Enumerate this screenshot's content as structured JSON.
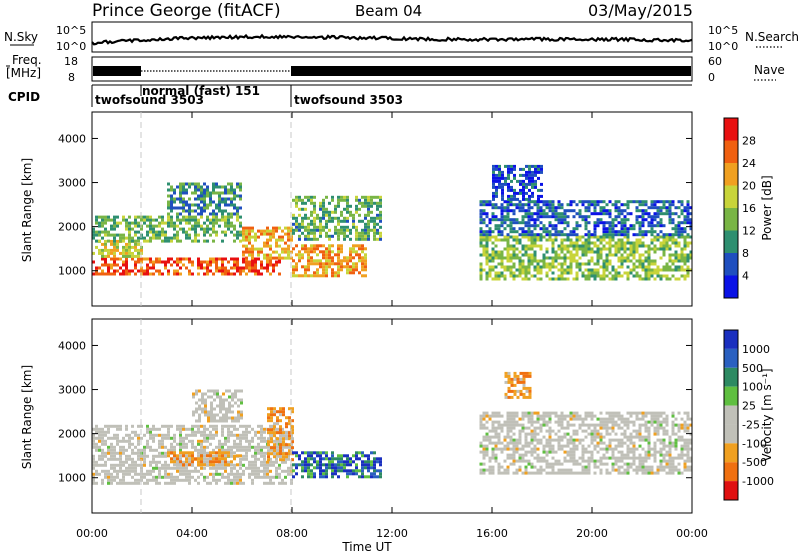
{
  "header": {
    "station": "Prince George (fitACF)",
    "beam": "Beam 04",
    "date": "03/May/2015"
  },
  "strips": {
    "nsky_label": "N.Sky",
    "nsky_ticks": [
      "10^5",
      "10^0"
    ],
    "nsearch_label": "N.Search",
    "freq_label_1": "Freq.",
    "freq_label_2": "[MHz]",
    "freq_ticks": [
      "18",
      "8"
    ],
    "nave_label": "Nave",
    "nave_ticks": [
      "60",
      "0"
    ],
    "cpid_label": "CPID",
    "cpid_segments": [
      {
        "label": "twofsound 3503",
        "start_h": 0,
        "end_h": 2
      },
      {
        "label": "normal (fast) 151",
        "start_h": 2,
        "end_h": 8
      },
      {
        "label": "twofsound 3503",
        "start_h": 8,
        "end_h": 24
      }
    ]
  },
  "colors": {
    "power_scale": [
      "#0a12e6",
      "#1f4fbf",
      "#2e8f70",
      "#79b545",
      "#c8d43a",
      "#f0a020",
      "#f06010",
      "#e81010"
    ],
    "velocity_scale": [
      "#1a2fbf",
      "#2a60c0",
      "#2d8a62",
      "#5fbf40",
      "#c0c0b8",
      "#c0c0b8",
      "#f0a020",
      "#f07010",
      "#e01010"
    ]
  },
  "chart_data": [
    {
      "type": "heatmap",
      "name": "power",
      "ylabel": "Slant Range [km]",
      "xlabel": "Time UT",
      "x_ticks": [
        "00:00",
        "04:00",
        "08:00",
        "12:00",
        "16:00",
        "20:00",
        "00:00"
      ],
      "x_range_hours": [
        0,
        24
      ],
      "y_ticks": [
        1000,
        2000,
        3000,
        4000
      ],
      "y_range": [
        200,
        4600
      ],
      "colorbar_label": "Power [dB]",
      "colorbar_ticks": [
        "4",
        "8",
        "12",
        "16",
        "20",
        "24",
        "28"
      ],
      "colorbar_range": [
        0,
        32
      ],
      "regions": [
        {
          "t0": 0,
          "t1": 7.5,
          "r0": 950,
          "r1": 1300,
          "level": 27
        },
        {
          "t0": 0,
          "t1": 2,
          "r0": 1300,
          "r1": 1700,
          "level": 18
        },
        {
          "t0": 0,
          "t1": 6,
          "r0": 1700,
          "r1": 2250,
          "level": 13
        },
        {
          "t0": 6,
          "t1": 8,
          "r0": 1300,
          "r1": 2000,
          "level": 22
        },
        {
          "t0": 8,
          "t1": 11,
          "r0": 900,
          "r1": 1600,
          "level": 22
        },
        {
          "t0": 8,
          "t1": 11.5,
          "r0": 1700,
          "r1": 2700,
          "level": 12
        },
        {
          "t0": 3,
          "t1": 6,
          "r0": 2300,
          "r1": 3000,
          "level": 10
        },
        {
          "t0": 15.5,
          "t1": 24,
          "r0": 800,
          "r1": 1800,
          "level": 15
        },
        {
          "t0": 15.5,
          "t1": 24,
          "r0": 1800,
          "r1": 2600,
          "level": 7
        },
        {
          "t0": 16,
          "t1": 18,
          "r0": 2600,
          "r1": 3400,
          "level": 6
        }
      ]
    },
    {
      "type": "heatmap",
      "name": "velocity",
      "ylabel": "Slant Range [km]",
      "xlabel": "Time UT",
      "x_ticks": [
        "00:00",
        "04:00",
        "08:00",
        "12:00",
        "16:00",
        "20:00",
        "00:00"
      ],
      "x_range_hours": [
        0,
        24
      ],
      "y_ticks": [
        1000,
        2000,
        3000,
        4000
      ],
      "y_range": [
        200,
        4600
      ],
      "colorbar_label": "Velocity [m s⁻¹]",
      "colorbar_ticks": [
        "1000",
        "500",
        "100",
        "25",
        "-25",
        "-100",
        "-500",
        "-1000"
      ],
      "regions": [
        {
          "t0": 0,
          "t1": 8,
          "r0": 900,
          "r1": 2200,
          "level": "low"
        },
        {
          "t0": 3,
          "t1": 6,
          "r0": 1300,
          "r1": 1600,
          "level": "neg-high"
        },
        {
          "t0": 4,
          "t1": 6,
          "r0": 2300,
          "r1": 3000,
          "level": "low"
        },
        {
          "t0": 7,
          "t1": 8,
          "r0": 1400,
          "r1": 2600,
          "level": "neg-high"
        },
        {
          "t0": 8,
          "t1": 11.5,
          "r0": 1000,
          "r1": 1600,
          "level": "pos-high"
        },
        {
          "t0": 15.5,
          "t1": 24,
          "r0": 1100,
          "r1": 2500,
          "level": "low"
        },
        {
          "t0": 16.5,
          "t1": 17.5,
          "r0": 2800,
          "r1": 3400,
          "level": "neg-high"
        }
      ]
    }
  ]
}
